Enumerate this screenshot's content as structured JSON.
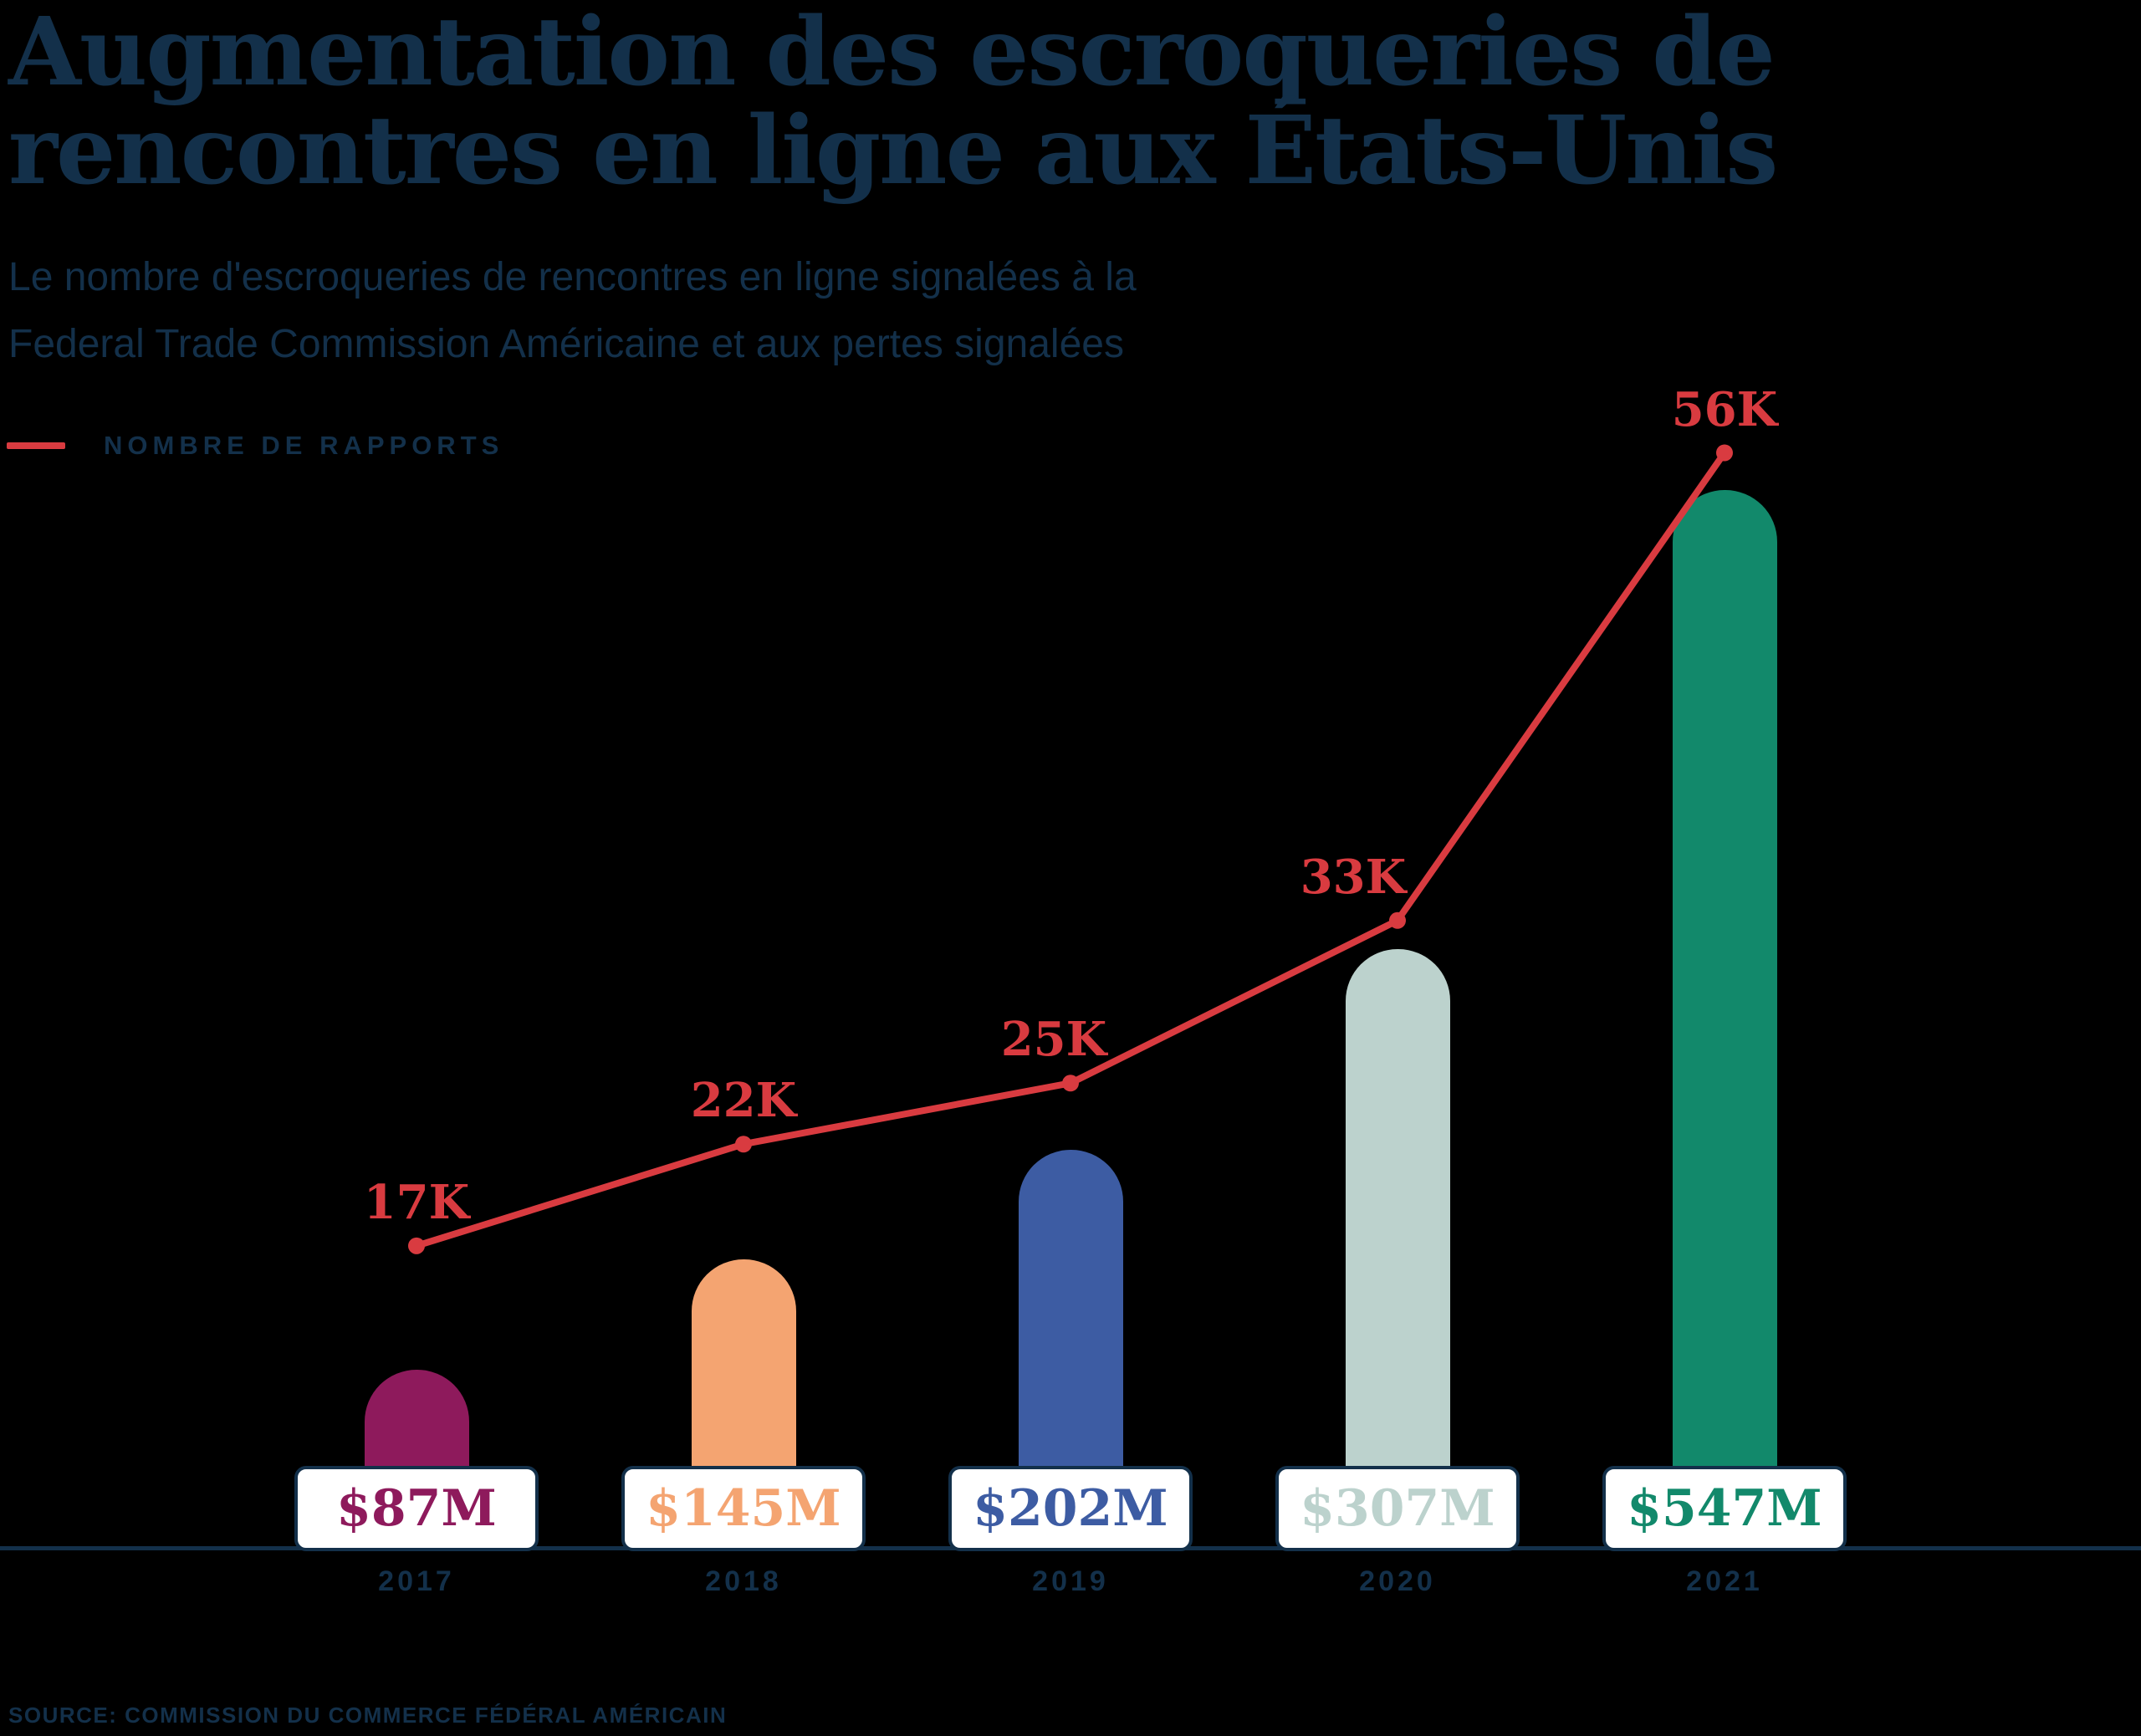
{
  "background": "#000000",
  "colors": {
    "navy": "#13304A",
    "red": "#D93B40",
    "pill_background": "#FFFFFF"
  },
  "header": {
    "title_line1": "Augmentation des escroqueries de",
    "title_line2": "rencontres en ligne aux États-Unis",
    "subtitle_line1": "Le nombre d'escroqueries de rencontres en ligne signalées à la",
    "subtitle_line2": "Federal Trade Commission Américaine et aux pertes signalées"
  },
  "legend": {
    "label": "NOMBRE DE RAPPORTS",
    "swatch_color": "#D93B40"
  },
  "source": "SOURCE: COMMISSION DU COMMERCE FÉDÉRAL AMÉRICAIN",
  "chart_data": {
    "type": "combo (bar + line)",
    "categories": [
      "2017",
      "2018",
      "2019",
      "2020",
      "2021"
    ],
    "series": [
      {
        "name": "Nombre de rapports",
        "type": "line",
        "values": [
          17000,
          22000,
          25000,
          33000,
          56000
        ],
        "point_labels": [
          "17K",
          "22K",
          "25K",
          "33K",
          "56K"
        ],
        "color": "#D93B40"
      },
      {
        "name": "Pertes signalées",
        "type": "bar",
        "values_millions_usd": [
          87,
          145,
          202,
          307,
          547
        ],
        "bar_labels": [
          "$87M",
          "$145M",
          "$202M",
          "$307M",
          "$547M"
        ],
        "bar_colors": [
          "#8E1A5C",
          "#F4A471",
          "#3D5CA3",
          "#BCD2CD",
          "#12896B"
        ]
      }
    ],
    "xlabel": "",
    "ylabel": "",
    "grid": false,
    "y_axis": "hidden",
    "x_axis_line": true,
    "legend_position": "top-left",
    "bar_shape": "rounded-top"
  }
}
